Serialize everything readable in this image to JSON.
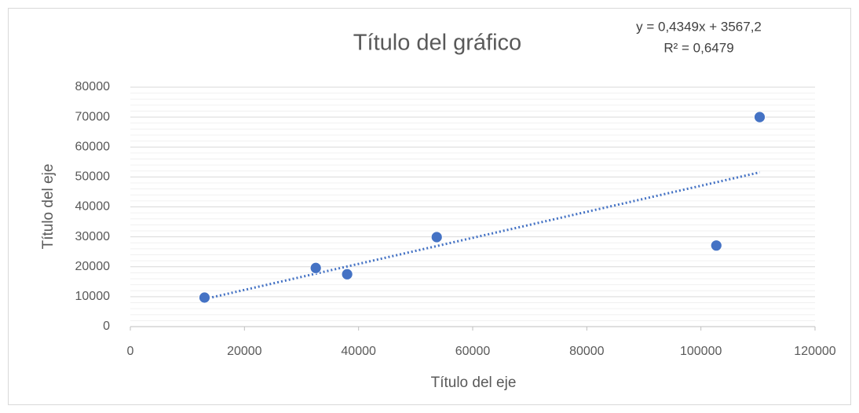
{
  "chart_data": {
    "type": "scatter",
    "title": "Título del gráfico",
    "x_label": "Título del eje",
    "y_label": "Título del eje",
    "series": [
      {
        "color": "#4472c4",
        "x": [
          13000,
          32500,
          38000,
          53700,
          102700,
          110300
        ],
        "values": [
          9700,
          19600,
          17500,
          29900,
          27100,
          70000
        ]
      }
    ],
    "trendline": {
      "type": "linear",
      "slope": 0.4349,
      "intercept": 3567.2,
      "equation": "y = 0,4349x + 3567,2",
      "r_squared": "R² = 0,6479",
      "color": "#4472c4"
    },
    "xlim": [
      0,
      120000
    ],
    "xticks": [
      0,
      20000,
      40000,
      60000,
      80000,
      100000,
      120000
    ],
    "ylim": [
      0,
      80000
    ],
    "yticks": [
      0,
      10000,
      20000,
      30000,
      40000,
      50000,
      60000,
      70000,
      80000
    ],
    "grid": true
  }
}
